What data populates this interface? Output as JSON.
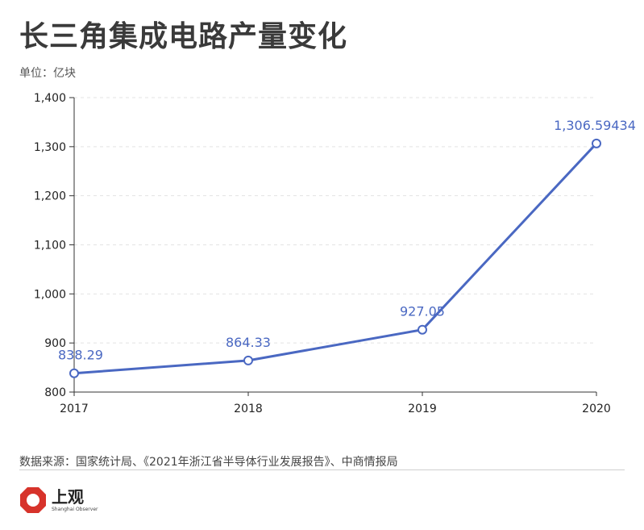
{
  "chart_data": {
    "type": "line",
    "title": "长三角集成电路产量变化",
    "unit_label": "单位：亿块",
    "categories": [
      "2017",
      "2018",
      "2019",
      "2020"
    ],
    "series": [
      {
        "name": "集成电路产量",
        "values": [
          838.29,
          864.33,
          927.05,
          1306.59434
        ],
        "labels": [
          "838.29",
          "864.33",
          "927.05",
          "1,306.59434"
        ]
      }
    ],
    "ylim": [
      800,
      1400
    ],
    "yticks": [
      800,
      900,
      1000,
      1100,
      1200,
      1300,
      1400
    ],
    "ytick_labels": [
      "800",
      "900",
      "1,000",
      "1,100",
      "1,200",
      "1,300",
      "1,400"
    ],
    "grid": true,
    "line_color": "#4a68c2"
  },
  "source": "数据来源：国家统计局、《2021年浙江省半导体行业发展报告》、中商情报局",
  "logo": {
    "name_cn": "上观",
    "name_en": "Shanghai Observer",
    "color": "#d7332b"
  }
}
